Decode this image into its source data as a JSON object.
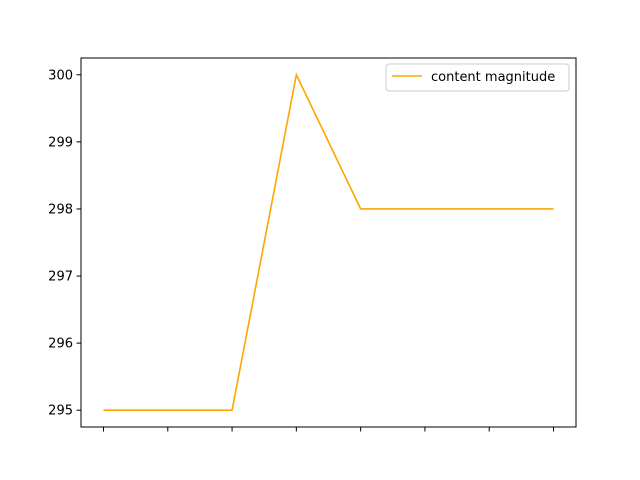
{
  "chart_data": {
    "type": "line",
    "x": [
      0,
      1,
      2,
      3,
      4,
      5,
      6,
      7
    ],
    "series": [
      {
        "name": "content magnitude",
        "values": [
          295,
          295,
          295,
          300,
          298,
          298,
          298,
          298
        ],
        "color": "#ffa500"
      }
    ],
    "title": "",
    "xlabel": "",
    "ylabel": "",
    "x_tick_labels_visible": false,
    "yticks": [
      295,
      296,
      297,
      298,
      299,
      300
    ],
    "ytick_labels": [
      "295",
      "296",
      "297",
      "298",
      "299",
      "300"
    ],
    "xlim": [
      -0.35,
      7.35
    ],
    "ylim": [
      294.75,
      300.25
    ],
    "grid": false,
    "legend_position": "upper right"
  }
}
